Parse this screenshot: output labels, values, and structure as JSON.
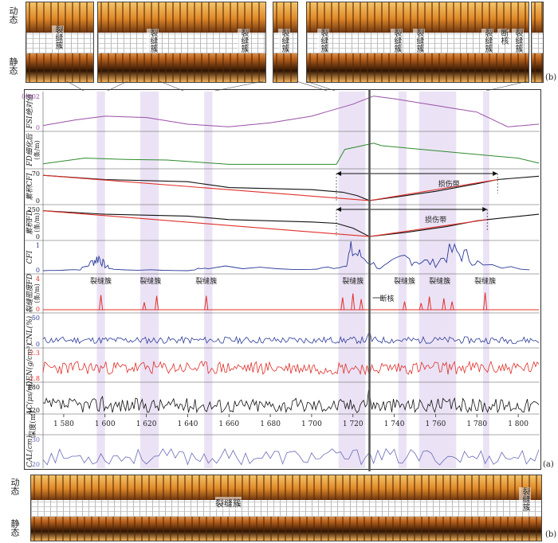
{
  "top_images": {
    "label_dynamic": "动态",
    "label_static": "静态",
    "panel_tag": "(b)",
    "crack_labels": [
      "裂缝簇",
      "裂缝簇",
      "裂缝簇",
      "裂缝簇",
      "裂缝簇",
      "裂缝簇",
      "裂缝簇",
      "裂缝簇",
      "裂缝簇"
    ],
    "fault_core_label": "断核"
  },
  "bottom_images": {
    "label_dynamic": "动态",
    "label_static": "静态",
    "panel_tag": "(b)",
    "crack_label_main": "裂缝簇",
    "crack_label_right": "裂缝簇"
  },
  "main_panel_tag": "(a)",
  "chart_data": {
    "type": "line",
    "depth_axis": {
      "label": "深度(m)",
      "range": [
        1570,
        1810
      ],
      "ticks": [
        1580,
        1600,
        1620,
        1640,
        1660,
        1680,
        1700,
        1720,
        1740,
        1760,
        1780,
        1800
      ],
      "tick_labels": [
        "1 580",
        "1 600",
        "1 620",
        "1 640",
        "1 660",
        "1 680",
        "1 700",
        "1 720",
        "1 740",
        "1 760",
        "1 780",
        "1 800"
      ]
    },
    "highlight_bands": [
      [
        1596,
        1600
      ],
      [
        1617,
        1626
      ],
      [
        1648,
        1652
      ],
      [
        1713,
        1726
      ],
      [
        1742,
        1746
      ],
      [
        1752,
        1770
      ],
      [
        1783,
        1786
      ]
    ],
    "fault_core_depth": 1728,
    "tracks": {
      "fsi": {
        "label": "FSI绝对值",
        "ticks": [
          "0.002",
          "0"
        ],
        "range": [
          0,
          0.0025
        ],
        "x": [
          1570,
          1585,
          1600,
          1620,
          1640,
          1660,
          1680,
          1700,
          1720,
          1730,
          1740,
          1760,
          1780,
          1795,
          1810
        ],
        "y": [
          0.0002,
          0.0006,
          0.0009,
          0.0008,
          0.0003,
          0.0001,
          0.0004,
          0.0009,
          0.0018,
          0.0024,
          0.0022,
          0.0017,
          0.0012,
          0.0001,
          0.0003
        ]
      },
      "fd_fine": {
        "label": "FD细化后",
        "unit": "(条/m)",
        "range": [
          0,
          5
        ],
        "x": [
          1570,
          1590,
          1610,
          1630,
          1660,
          1700,
          1712,
          1716,
          1730,
          1734,
          1760,
          1780,
          1800,
          1810
        ],
        "y": [
          0.3,
          1.2,
          1.0,
          0.9,
          0.2,
          0.2,
          0.2,
          2.6,
          3.6,
          3.2,
          2.4,
          1.8,
          1.2,
          0.4
        ]
      },
      "cum_cfi": {
        "label": "累积CFI",
        "ticks": [
          "70",
          "0"
        ],
        "range": [
          0,
          70
        ],
        "x": [
          1570,
          1600,
          1640,
          1660,
          1700,
          1715,
          1722,
          1728,
          1740,
          1760,
          1780,
          1790,
          1810
        ],
        "y": [
          62,
          52,
          47,
          33,
          28,
          22,
          14,
          2,
          10,
          24,
          42,
          52,
          60
        ],
        "fit_x": [
          1570,
          1728,
          1790
        ],
        "fit_y": [
          62,
          2,
          52
        ],
        "damage_label": "损伤带",
        "damage_range": [
          1712,
          1790
        ]
      },
      "cum_fd": {
        "label": "累积FD",
        "unit": "(条/m)",
        "ticks": [
          "250",
          "0"
        ],
        "range": [
          0,
          250
        ],
        "x": [
          1570,
          1600,
          1640,
          1660,
          1700,
          1712,
          1720,
          1728,
          1745,
          1765,
          1780,
          1785,
          1810
        ],
        "y": [
          225,
          195,
          180,
          150,
          130,
          118,
          78,
          6,
          40,
          90,
          140,
          150,
          195
        ],
        "fit_x": [
          1570,
          1728,
          1785
        ],
        "fit_y": [
          225,
          6,
          150
        ],
        "damage_label": "损伤带",
        "damage_range": [
          1712,
          1785
        ]
      },
      "cfi": {
        "label": "CFI",
        "ticks": [
          "1",
          "0"
        ],
        "range": [
          0,
          1
        ],
        "x": [
          1570,
          1588,
          1594,
          1597,
          1600,
          1604,
          1640,
          1650,
          1700,
          1716,
          1719,
          1724,
          1733,
          1745,
          1752,
          1760,
          1768,
          1775,
          1783,
          1810
        ],
        "y": [
          0.0,
          0.05,
          0.35,
          0.55,
          0.2,
          0.05,
          0.0,
          0.15,
          0.05,
          0.2,
          0.8,
          0.6,
          0.1,
          0.5,
          0.4,
          0.3,
          0.8,
          0.6,
          0.2,
          0.05
        ]
      },
      "fd_density": {
        "label": "裂缝密度FD",
        "unit": "(条/m)",
        "ticks": [
          "4",
          "0"
        ],
        "range": [
          0,
          4
        ],
        "spike_depths": [
          1598,
          1619,
          1625,
          1649,
          1715,
          1720,
          1724,
          1745,
          1753,
          1757,
          1764,
          1768,
          1784
        ],
        "spike_values": [
          1.8,
          0.9,
          1.7,
          1.7,
          1.5,
          2.0,
          1.3,
          1.0,
          0.8,
          1.6,
          1.4,
          1.0,
          2.1
        ],
        "cluster_labels": [
          "裂缝簇",
          "裂缝簇",
          "裂缝簇",
          "裂缝簇",
          "裂缝簇",
          "裂缝簇",
          "裂缝簇"
        ],
        "cluster_depths": [
          1598,
          1622,
          1649,
          1720,
          1745,
          1762,
          1784
        ],
        "fault_core_label": "断核"
      },
      "cnl": {
        "label": "CNL(%)",
        "ticks": [
          "50",
          "0"
        ],
        "range": [
          0,
          50
        ],
        "baseline": 8,
        "variation": 6
      },
      "den": {
        "label": "DEN(g/cm³)",
        "ticks": [
          "2.3",
          "2.8"
        ],
        "range": [
          2.3,
          2.8
        ],
        "baseline": 2.5,
        "variation": 0.12
      },
      "ac": {
        "label": "AC(μs/m)",
        "ticks": [
          "180",
          "320"
        ],
        "range": [
          180,
          320
        ],
        "baseline": 210,
        "variation": 40
      },
      "cal": {
        "label": "CAL(cm)",
        "ticks": [
          "30",
          "20"
        ],
        "range": [
          20,
          30
        ],
        "baseline": 23,
        "variation": 3
      }
    }
  }
}
